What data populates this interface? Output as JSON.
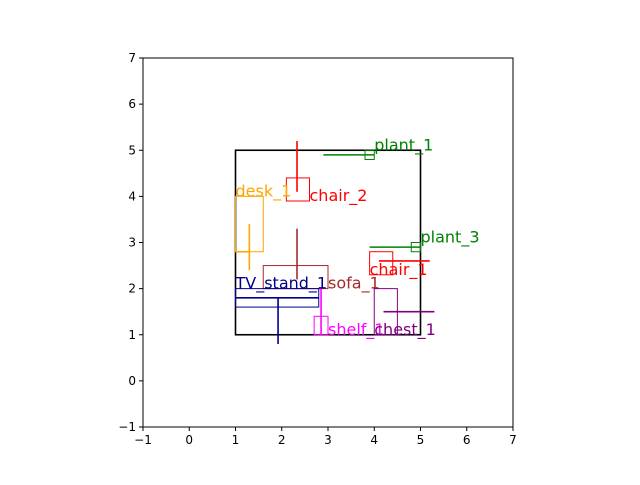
{
  "chart_data": {
    "type": "scatter",
    "title": "",
    "xlabel": "",
    "ylabel": "",
    "xlim": [
      -1,
      7
    ],
    "ylim": [
      -1,
      7
    ],
    "xticks": [
      "−1",
      "0",
      "1",
      "2",
      "3",
      "4",
      "5",
      "6",
      "7"
    ],
    "yticks": [
      "−1",
      "0",
      "1",
      "2",
      "3",
      "4",
      "5",
      "6",
      "7"
    ],
    "grid": false,
    "room": {
      "x0": 1,
      "y0": 1,
      "x1": 5,
      "y1": 5,
      "color": "#000000"
    },
    "objects": [
      {
        "label": "plant_1",
        "color": "#008000",
        "rect": [
          3.8,
          4.8,
          4.0,
          5.0
        ],
        "hline": [
          2.9,
          4.0,
          4.9
        ],
        "label_at": [
          4.0,
          5.0
        ]
      },
      {
        "label": "chair_2",
        "color": "#ff0000",
        "rect": [
          2.1,
          3.9,
          2.6,
          4.4
        ],
        "vline": [
          2.33,
          4.1,
          5.2
        ],
        "label_at": [
          2.6,
          3.9
        ]
      },
      {
        "label": "desk_1",
        "color": "#ffa500",
        "rect": [
          1.0,
          2.8,
          1.6,
          4.0
        ],
        "vline": [
          1.3,
          2.4,
          3.4
        ],
        "hline": [
          1.0,
          1.3,
          2.8
        ],
        "label_at": [
          1.0,
          4.0
        ]
      },
      {
        "label": "plant_3",
        "color": "#008000",
        "rect": [
          4.8,
          2.8,
          5.0,
          3.0
        ],
        "hline": [
          3.9,
          5.0,
          2.9
        ],
        "label_at": [
          5.0,
          3.0
        ]
      },
      {
        "label": "chair_1",
        "color": "#ff0000",
        "rect": [
          3.9,
          2.3,
          4.4,
          2.8
        ],
        "hline": [
          4.1,
          5.2,
          2.6
        ],
        "label_at": [
          3.9,
          2.3
        ]
      },
      {
        "label": "sofa_1",
        "color": "#a52a2a",
        "rect": [
          1.6,
          2.0,
          3.0,
          2.5
        ],
        "vline": [
          2.33,
          2.2,
          3.3
        ],
        "label_at": [
          3.0,
          2.0
        ]
      },
      {
        "label": "TV_stand_1",
        "color": "#00008b",
        "rect": [
          1.0,
          1.6,
          2.8,
          2.0
        ],
        "vline": [
          1.92,
          0.8,
          1.8
        ],
        "hline": [
          1.0,
          2.8,
          1.8
        ],
        "label_at": [
          1.0,
          2.0
        ]
      },
      {
        "label": "shelf_1",
        "color": "#ff00ff",
        "rect": [
          2.7,
          1.0,
          3.0,
          1.4
        ],
        "vline": [
          2.85,
          1.0,
          2.0
        ],
        "label_at": [
          3.0,
          1.0
        ]
      },
      {
        "label": "chest_1",
        "color": "#800080",
        "rect": [
          4.0,
          1.0,
          4.5,
          2.0
        ],
        "hline": [
          4.2,
          5.3,
          1.5
        ],
        "label_at": [
          4.0,
          1.0
        ]
      }
    ]
  }
}
